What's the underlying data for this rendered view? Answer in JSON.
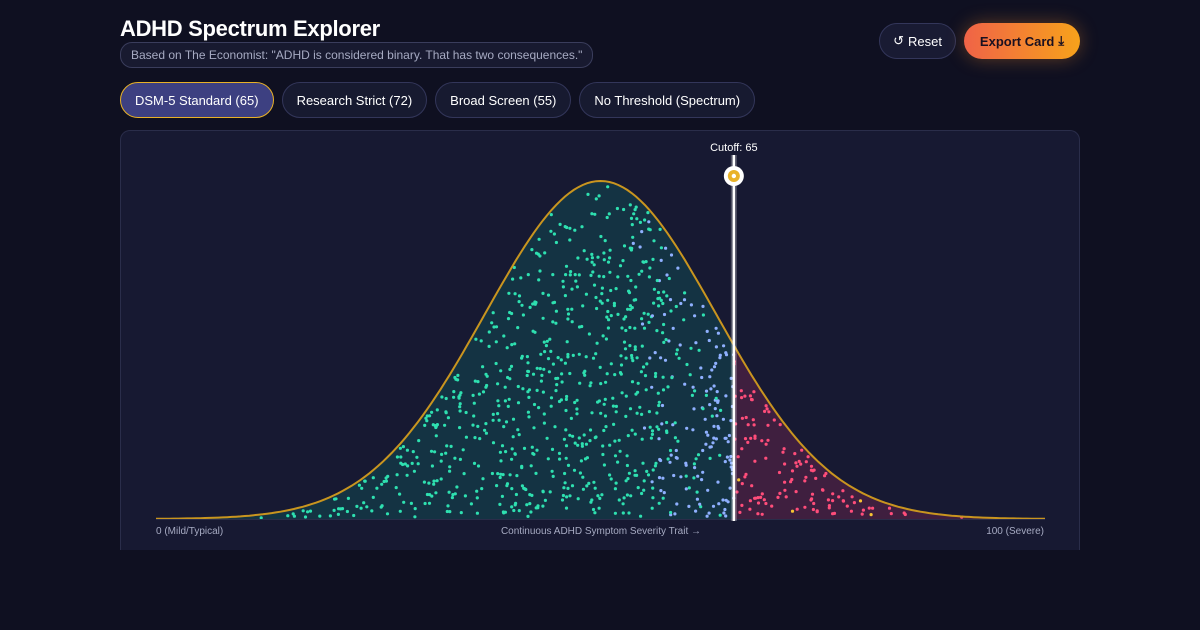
{
  "header": {
    "title": "ADHD Spectrum Explorer",
    "subtitle": "Based on The Economist: \"ADHD is considered binary. That has two consequences.\"",
    "reset_icon": "↺",
    "reset_label": "Reset",
    "export_label": "Export Card",
    "export_icon": "⤓"
  },
  "tabs": [
    {
      "label": "DSM-5 Standard (65)",
      "active": true
    },
    {
      "label": "Research Strict (72)",
      "active": false
    },
    {
      "label": "Broad Screen (55)",
      "active": false
    },
    {
      "label": "No Threshold (Spectrum)",
      "active": false
    }
  ],
  "chart": {
    "cutoff_label": "Cutoff: 65",
    "cutoff_value": 65,
    "x_min_label": "0 (Mild/Typical)",
    "x_center_label": "Continuous ADHD Symptom Severity Trait →",
    "x_max_label": "100 (Severe)"
  },
  "colors": {
    "background": "#0f1021",
    "curve_stroke": "#c9951f",
    "below_cutoff_fill": "#143343",
    "above_cutoff_fill": "#3f1f3f",
    "dot_below": "#2ee0b0",
    "dot_near": "#8fb0ff",
    "dot_above": "#ff4d7a",
    "dot_highlight": "#f7c333",
    "accent_gold": "#e9b228"
  },
  "chart_data": {
    "type": "area",
    "x_range": [
      0,
      100
    ],
    "distribution": "normal",
    "mean": 50,
    "threshold": 65,
    "point_count": 1000
  }
}
